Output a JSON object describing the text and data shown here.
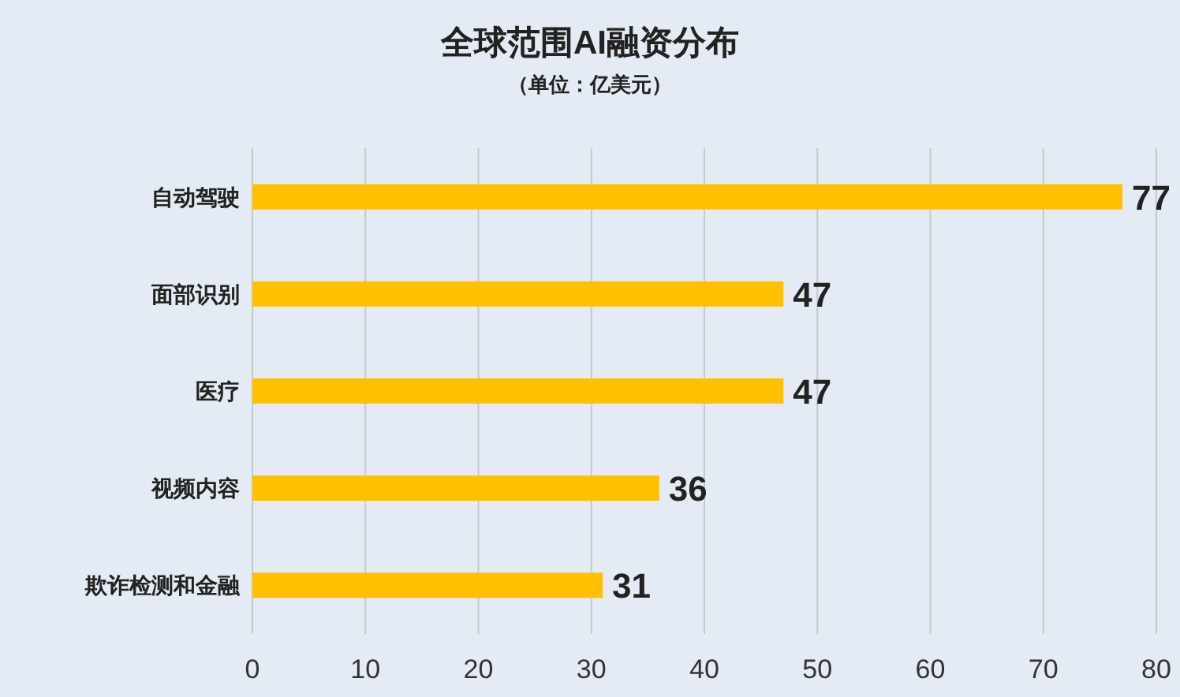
{
  "chart_data": {
    "type": "bar",
    "orientation": "horizontal",
    "title": "全球范围AI融资分布",
    "subtitle": "（单位：亿美元）",
    "categories": [
      "自动驾驶",
      "面部识别",
      "医疗",
      "视频内容",
      "欺诈检测和金融"
    ],
    "values": [
      77,
      47,
      47,
      36,
      31
    ],
    "color": "#ffc000",
    "xlim": [
      0,
      80
    ],
    "xticks": [
      0,
      10,
      20,
      30,
      40,
      50,
      60,
      70,
      80
    ],
    "grid": "x",
    "data_labels": true
  }
}
